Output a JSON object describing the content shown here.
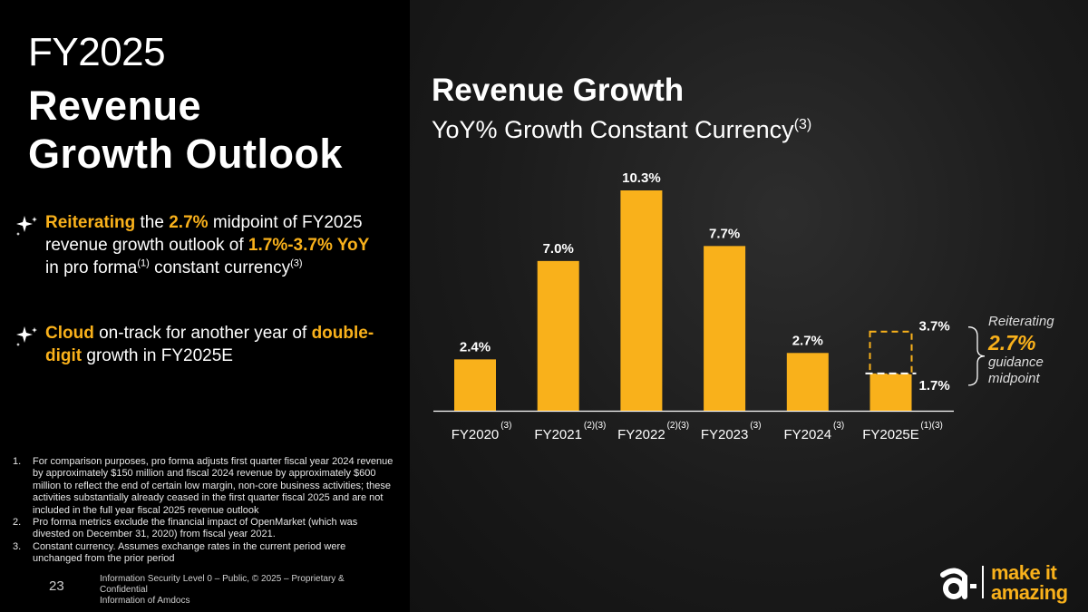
{
  "left": {
    "title_line1": "FY2025",
    "title_line2": "Revenue",
    "title_line3": "Growth Outlook",
    "bullet1": {
      "hl1": "Reiterating",
      "t1": " the ",
      "hl2": "2.7%",
      "t2": " midpoint of FY2025 revenue growth outlook of ",
      "hl3": "1.7%-3.7% YoY",
      "t3": " in pro forma",
      "sup1": "(1)",
      "t4": " constant currency",
      "sup2": "(3)"
    },
    "bullet2": {
      "hl1": "Cloud",
      "t1": " on-track for another year of ",
      "hl2": "double-digit",
      "t2": " growth in FY2025E"
    },
    "notes": [
      {
        "n": "1.",
        "text": "For comparison purposes, pro forma adjusts first quarter fiscal year 2024 revenue by approximately $150 million and fiscal 2024 revenue by approximately $600 million to reflect the end of certain low margin, non-core business activities; these activities substantially already ceased in the first quarter fiscal 2025 and are not included in the full year fiscal 2025 revenue outlook"
      },
      {
        "n": "2.",
        "text": "Pro forma metrics exclude the financial impact of OpenMarket (which was divested on December 31, 2020) from fiscal year 2021."
      },
      {
        "n": "3.",
        "text": "Constant currency. Assumes exchange rates in the current period were unchanged from the prior period"
      }
    ],
    "page_number": "23",
    "footer_line1": "Information Security Level 0 – Public, © 2025 – Proprietary & Confidential",
    "footer_line2": "Information of Amdocs"
  },
  "chart_title": "Revenue Growth",
  "chart_subtitle": "YoY% Growth Constant Currency",
  "chart_subtitle_sup": "(3)",
  "annotation": {
    "line1": "Reiterating",
    "line2": "2.7%",
    "line3": "guidance",
    "line4": "midpoint"
  },
  "logo_text_line1": "make it",
  "logo_text_line2": "amazing",
  "colors": {
    "accent": "#f9b11b",
    "background_left": "#000000",
    "background_right": "#1e1e1e"
  },
  "chart_data": {
    "type": "bar",
    "categories": [
      "FY2020",
      "FY2021",
      "FY2022",
      "FY2023",
      "FY2024",
      "FY2025E"
    ],
    "category_superscripts": [
      "(3)",
      "(2)(3)",
      "(2)(3)",
      "(3)",
      "(3)",
      "(1)(3)"
    ],
    "values": [
      2.4,
      7.0,
      10.3,
      7.7,
      2.7,
      1.7
    ],
    "data_labels": [
      "2.4%",
      "7.0%",
      "10.3%",
      "7.7%",
      "2.7%",
      "1.7%"
    ],
    "range": {
      "low": 1.7,
      "high": 3.7,
      "low_label": "1.7%",
      "high_label": "3.7%",
      "midpoint": 2.7
    },
    "ylim": [
      0,
      10.3
    ],
    "grid": false,
    "legend": "none"
  }
}
